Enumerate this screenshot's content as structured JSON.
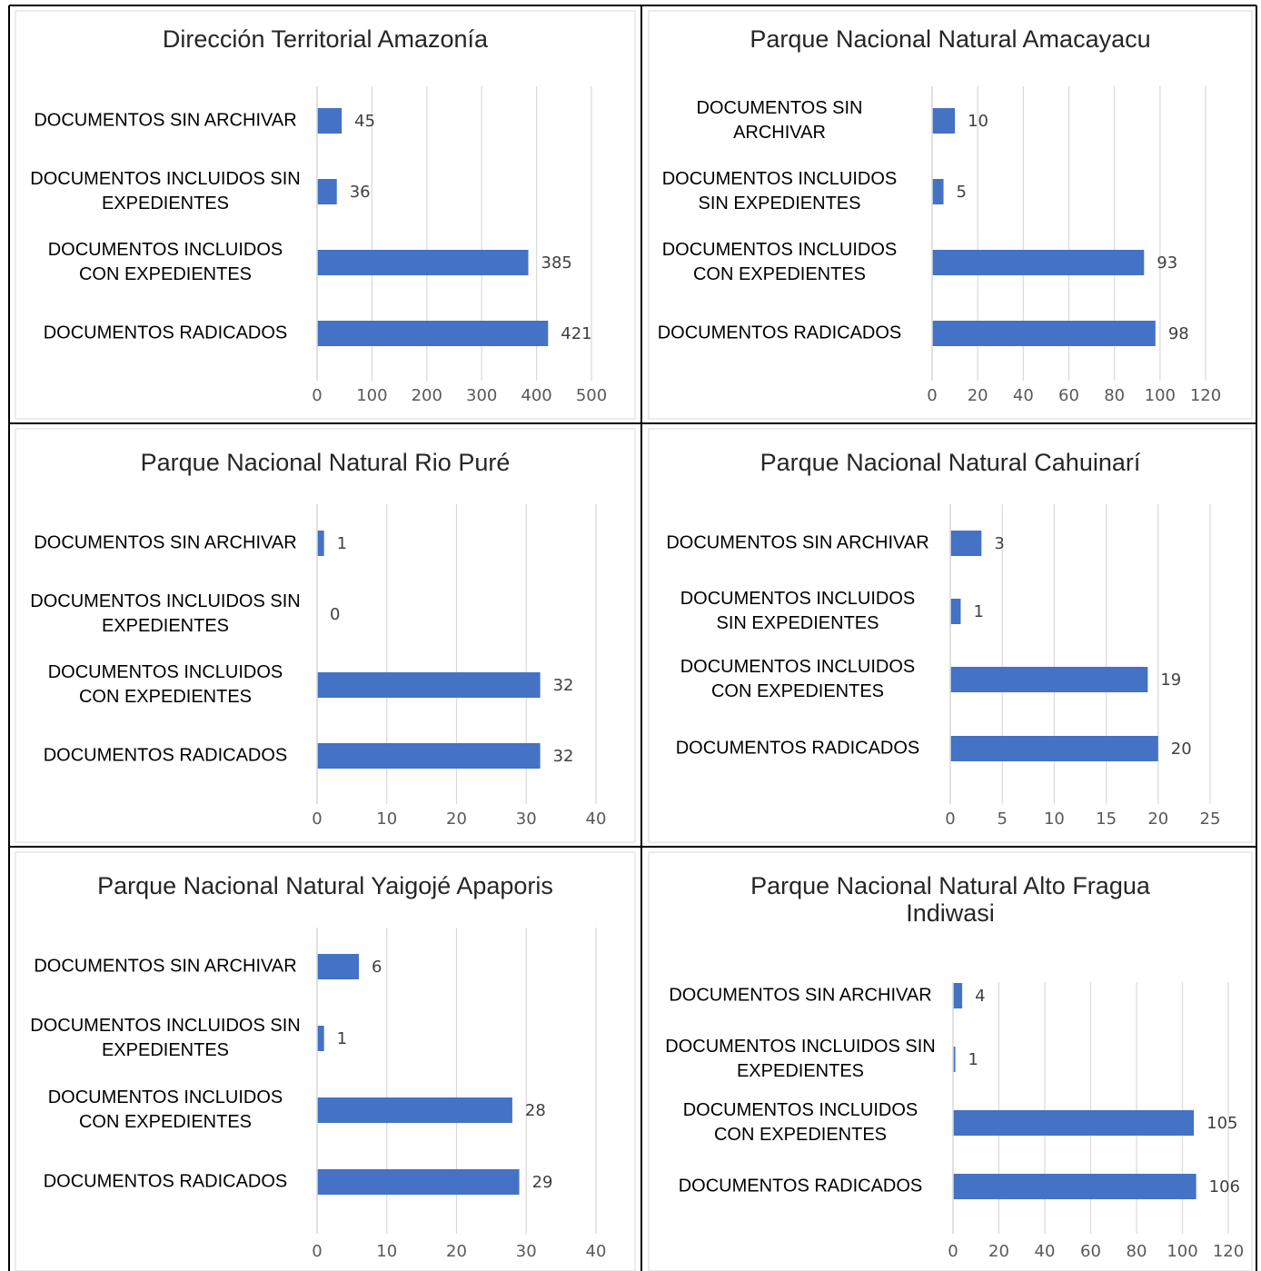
{
  "chart_data": [
    {
      "type": "bar",
      "title": "Dirección Territorial Amazonía",
      "categories": [
        [
          "DOCUMENTOS SIN ARCHIVAR"
        ],
        [
          "DOCUMENTOS INCLUIDOS SIN",
          "EXPEDIENTES"
        ],
        [
          "DOCUMENTOS INCLUIDOS",
          "CON EXPEDIENTES"
        ],
        [
          "DOCUMENTOS RADICADOS"
        ]
      ],
      "values": [
        45,
        36,
        385,
        421
      ],
      "xlim": [
        0,
        500
      ],
      "ticks": [
        0,
        100,
        200,
        300,
        400,
        500
      ],
      "color": "#4472C4"
    },
    {
      "type": "bar",
      "title": "Parque Nacional Natural Amacayacu",
      "categories": [
        [
          "DOCUMENTOS SIN",
          "ARCHIVAR"
        ],
        [
          "DOCUMENTOS INCLUIDOS",
          "SIN EXPEDIENTES"
        ],
        [
          "DOCUMENTOS INCLUIDOS",
          "CON EXPEDIENTES"
        ],
        [
          "DOCUMENTOS RADICADOS"
        ]
      ],
      "values": [
        10,
        5,
        93,
        98
      ],
      "xlim": [
        0,
        120
      ],
      "ticks": [
        0,
        20,
        40,
        60,
        80,
        100,
        120
      ],
      "color": "#4472C4"
    },
    {
      "type": "bar",
      "title": "Parque Nacional Natural Rio Puré",
      "categories": [
        [
          "DOCUMENTOS SIN ARCHIVAR"
        ],
        [
          "DOCUMENTOS INCLUIDOS SIN",
          "EXPEDIENTES"
        ],
        [
          "DOCUMENTOS INCLUIDOS",
          "CON EXPEDIENTES"
        ],
        [
          "DOCUMENTOS RADICADOS"
        ]
      ],
      "values": [
        1,
        0,
        32,
        32
      ],
      "xlim": [
        0,
        40
      ],
      "ticks": [
        0,
        10,
        20,
        30,
        40
      ],
      "color": "#4472C4"
    },
    {
      "type": "bar",
      "title": "Parque Nacional Natural Cahuinarí",
      "categories": [
        [
          "DOCUMENTOS SIN ARCHIVAR"
        ],
        [
          "DOCUMENTOS INCLUIDOS",
          "SIN EXPEDIENTES"
        ],
        [
          "DOCUMENTOS INCLUIDOS",
          "CON EXPEDIENTES"
        ],
        [
          "DOCUMENTOS RADICADOS"
        ]
      ],
      "values": [
        3,
        1,
        19,
        20
      ],
      "xlim": [
        0,
        25
      ],
      "ticks": [
        0,
        5,
        10,
        15,
        20,
        25
      ],
      "color": "#4472C4"
    },
    {
      "type": "bar",
      "title": "Parque Nacional Natural Yaigojé Apaporis",
      "categories": [
        [
          "DOCUMENTOS SIN ARCHIVAR"
        ],
        [
          "DOCUMENTOS INCLUIDOS SIN",
          "EXPEDIENTES"
        ],
        [
          "DOCUMENTOS INCLUIDOS",
          "CON EXPEDIENTES"
        ],
        [
          "DOCUMENTOS RADICADOS"
        ]
      ],
      "values": [
        6,
        1,
        28,
        29
      ],
      "xlim": [
        0,
        40
      ],
      "ticks": [
        0,
        10,
        20,
        30,
        40
      ],
      "color": "#4472C4"
    },
    {
      "type": "bar",
      "title": "Parque Nacional Natural Alto Fragua\nIndiwasi",
      "categories": [
        [
          "DOCUMENTOS SIN ARCHIVAR"
        ],
        [
          "DOCUMENTOS INCLUIDOS SIN",
          "EXPEDIENTES"
        ],
        [
          "DOCUMENTOS INCLUIDOS",
          "CON EXPEDIENTES"
        ],
        [
          "DOCUMENTOS RADICADOS"
        ]
      ],
      "values": [
        4,
        1,
        105,
        106
      ],
      "xlim": [
        0,
        120
      ],
      "ticks": [
        0,
        20,
        40,
        60,
        80,
        100,
        120
      ],
      "color": "#4472C4"
    }
  ]
}
